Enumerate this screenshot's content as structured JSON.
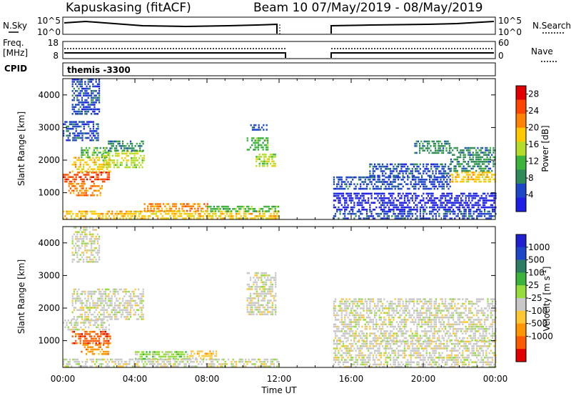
{
  "header": {
    "radar_title": "Kapuskasing (fitACF)",
    "beam_title": "Beam 10 07/May/2019 - 08/May/2019"
  },
  "status_panels": {
    "nsky_label": "N.Sky",
    "nsky_ticks": [
      "10^5",
      "10^0"
    ],
    "nsearch_label": "N.Search",
    "nsearch_ticks": [
      "10^5",
      "10^0"
    ],
    "freq_label": "Freq.",
    "freq_unit": "[MHz]",
    "freq_ticks": [
      "18",
      "8"
    ],
    "nave_label": "Nave",
    "nave_ticks": [
      "60",
      "0"
    ],
    "cpid_label": "CPID",
    "cpid_value": "themis -3300"
  },
  "colors": {
    "power": [
      "#1e1ee6",
      "#1e46c8",
      "#2e8b57",
      "#3cb43c",
      "#b4dc28",
      "#ffc800",
      "#ff8200",
      "#ff4600",
      "#e10000"
    ],
    "velocity": [
      "#e10000",
      "#ff5a00",
      "#ff9600",
      "#ffc832",
      "#c8c8c8",
      "#96dc3c",
      "#3cb43c",
      "#2d7d64",
      "#1e46c8",
      "#2020d0"
    ],
    "ground_scatter": "#bebebe"
  },
  "chart_data": [
    {
      "type": "heatmap",
      "name": "power",
      "xlabel": "",
      "ylabel": "Slant Range [km]",
      "x_ticks": [
        "00:00",
        "04:00",
        "08:00",
        "12:00",
        "16:00",
        "20:00",
        "00:00"
      ],
      "y_ticks": [
        1000,
        2000,
        3000,
        4000
      ],
      "xlim_hours": [
        0,
        24
      ],
      "ylim_km": [
        180,
        4500
      ],
      "colorbar": {
        "label": "Power [dB]",
        "ticks": [
          "4",
          "8",
          "12",
          "16",
          "20",
          "24",
          "28"
        ],
        "range": [
          0,
          30
        ]
      },
      "data_gap_hours": [
        12,
        15
      ],
      "regions": [
        {
          "t": [
            0.0,
            2.6
          ],
          "r": [
            1300,
            1650
          ],
          "level": 7
        },
        {
          "t": [
            0.5,
            2.6
          ],
          "r": [
            1650,
            2100
          ],
          "level": 5
        },
        {
          "t": [
            1.0,
            2.5
          ],
          "r": [
            2100,
            2400
          ],
          "level": 3
        },
        {
          "t": [
            0.3,
            2.2
          ],
          "r": [
            900,
            1300
          ],
          "level": 6
        },
        {
          "t": [
            2.2,
            4.5
          ],
          "r": [
            1800,
            2300
          ],
          "level": 4
        },
        {
          "t": [
            2.5,
            4.5
          ],
          "r": [
            2300,
            2600
          ],
          "level": 2
        },
        {
          "t": [
            0.0,
            2.0
          ],
          "r": [
            2600,
            3200
          ],
          "level": 1
        },
        {
          "t": [
            0.5,
            2.0
          ],
          "r": [
            3400,
            4500
          ],
          "level": 1
        },
        {
          "t": [
            4.5,
            8.0
          ],
          "r": [
            420,
            680
          ],
          "level": 6
        },
        {
          "t": [
            0.0,
            12.0
          ],
          "r": [
            200,
            450
          ],
          "level": 5
        },
        {
          "t": [
            8.0,
            12.0
          ],
          "r": [
            450,
            600
          ],
          "level": 3
        },
        {
          "t": [
            10.2,
            11.4
          ],
          "r": [
            2300,
            2700
          ],
          "level": 3
        },
        {
          "t": [
            10.7,
            11.8
          ],
          "r": [
            1800,
            2200
          ],
          "level": 4
        },
        {
          "t": [
            10.4,
            11.3
          ],
          "r": [
            2900,
            3100
          ],
          "level": 1
        },
        {
          "t": [
            15.0,
            21.5
          ],
          "r": [
            1100,
            1500
          ],
          "level": 1
        },
        {
          "t": [
            17.0,
            21.5
          ],
          "r": [
            1500,
            1900
          ],
          "level": 1
        },
        {
          "t": [
            19.5,
            21.5
          ],
          "r": [
            2200,
            2600
          ],
          "level": 2
        },
        {
          "t": [
            21.5,
            24.0
          ],
          "r": [
            1350,
            1650
          ],
          "level": 5
        },
        {
          "t": [
            21.5,
            24.0
          ],
          "r": [
            1650,
            2400
          ],
          "level": 2
        },
        {
          "t": [
            15.0,
            24.0
          ],
          "r": [
            200,
            450
          ],
          "level": 1
        },
        {
          "t": [
            15.0,
            24.0
          ],
          "r": [
            450,
            1000
          ],
          "level": 0
        }
      ]
    },
    {
      "type": "heatmap",
      "name": "velocity",
      "xlabel": "Time UT",
      "ylabel": "Slant Range [km]",
      "x_ticks": [
        "00:00",
        "04:00",
        "08:00",
        "12:00",
        "16:00",
        "20:00",
        "00:00"
      ],
      "y_ticks": [
        1000,
        2000,
        3000,
        4000
      ],
      "xlim_hours": [
        0,
        24
      ],
      "ylim_km": [
        180,
        4500
      ],
      "colorbar": {
        "label": "Velocity [m s^-1]",
        "ticks": [
          "1000",
          "500",
          "100",
          "25",
          "-25",
          "-100",
          "-500",
          "-1000"
        ]
      },
      "data_gap_hours": [
        12,
        15
      ],
      "regions": [
        {
          "t": [
            0.0,
            2.6
          ],
          "r": [
            1300,
            1650
          ],
          "level": 4
        },
        {
          "t": [
            0.5,
            4.5
          ],
          "r": [
            1650,
            2600
          ],
          "level": 4
        },
        {
          "t": [
            0.5,
            2.6
          ],
          "r": [
            900,
            1300
          ],
          "level": 1
        },
        {
          "t": [
            1.0,
            2.5
          ],
          "r": [
            600,
            900
          ],
          "level": 2
        },
        {
          "t": [
            4.0,
            7.0
          ],
          "r": [
            420,
            680
          ],
          "level": 5
        },
        {
          "t": [
            7.0,
            8.5
          ],
          "r": [
            450,
            700
          ],
          "level": 3
        },
        {
          "t": [
            0.0,
            12.0
          ],
          "r": [
            200,
            450
          ],
          "level": 4
        },
        {
          "t": [
            10.2,
            11.8
          ],
          "r": [
            1800,
            3100
          ],
          "level": 4
        },
        {
          "t": [
            0.5,
            2.0
          ],
          "r": [
            3400,
            4500
          ],
          "level": 4
        },
        {
          "t": [
            15.0,
            24.0
          ],
          "r": [
            1000,
            2300
          ],
          "level": 4
        },
        {
          "t": [
            15.0,
            24.0
          ],
          "r": [
            200,
            1000
          ],
          "level": 4
        }
      ]
    }
  ]
}
